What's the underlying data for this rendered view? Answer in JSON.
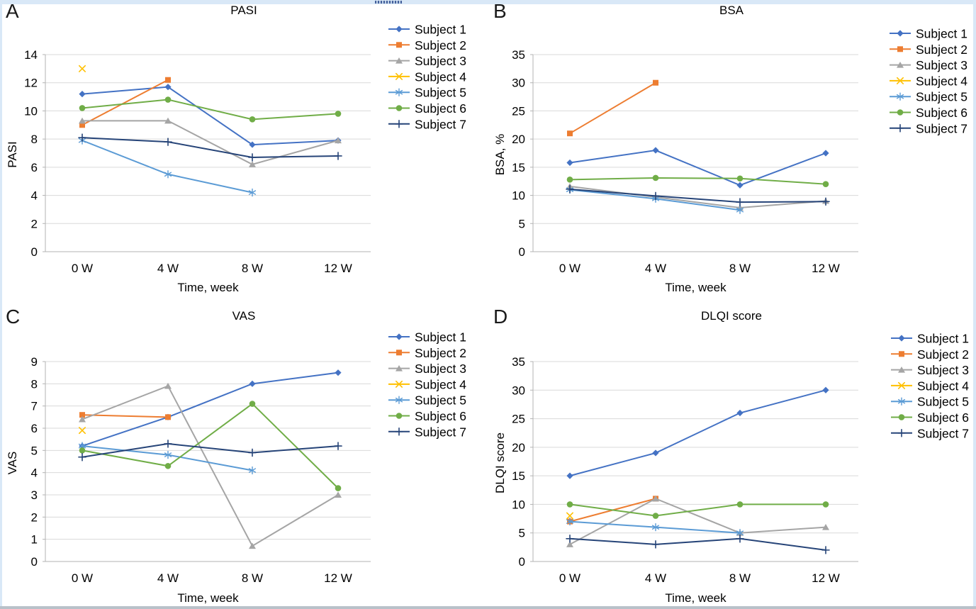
{
  "frame": {
    "edge_color": "#d9e8f7",
    "bottom_bar_color": "#b9c1c9"
  },
  "chart_data": [
    {
      "type": "line",
      "letter": "A",
      "title": "PASI",
      "xlabel": "Time, week",
      "ylabel": "PASI",
      "categories": [
        "0 W",
        "4 W",
        "8 W",
        "12 W"
      ],
      "ylim": [
        0,
        14
      ],
      "ytick_step": 2,
      "grid": true,
      "legend_position": "right",
      "series": [
        {
          "name": "Subject 1",
          "color": "#4472C4",
          "marker": "diamond",
          "values": [
            11.2,
            11.7,
            7.6,
            7.9
          ]
        },
        {
          "name": "Subject 2",
          "color": "#ED7D31",
          "marker": "square",
          "values": [
            9.0,
            12.2,
            null,
            null
          ]
        },
        {
          "name": "Subject 3",
          "color": "#A5A5A5",
          "marker": "triangle",
          "values": [
            9.3,
            9.3,
            6.2,
            7.9
          ]
        },
        {
          "name": "Subject 4",
          "color": "#FFC000",
          "marker": "x",
          "values": [
            13.0,
            null,
            null,
            null
          ]
        },
        {
          "name": "Subject 5",
          "color": "#5B9BD5",
          "marker": "asterisk",
          "values": [
            7.9,
            5.5,
            4.2,
            null
          ]
        },
        {
          "name": "Subject 6",
          "color": "#70AD47",
          "marker": "circle",
          "values": [
            10.2,
            10.8,
            9.4,
            9.8
          ]
        },
        {
          "name": "Subject 7",
          "color": "#264478",
          "marker": "plus",
          "values": [
            8.1,
            7.8,
            6.7,
            6.8
          ]
        }
      ]
    },
    {
      "type": "line",
      "letter": "B",
      "title": "BSA",
      "xlabel": "Time, week",
      "ylabel": "BSA, %",
      "categories": [
        "0 W",
        "4 W",
        "8 W",
        "12 W"
      ],
      "ylim": [
        0,
        35
      ],
      "ytick_step": 5,
      "grid": true,
      "legend_position": "right",
      "series": [
        {
          "name": "Subject 1",
          "color": "#4472C4",
          "marker": "diamond",
          "values": [
            15.8,
            18.0,
            11.8,
            17.5
          ]
        },
        {
          "name": "Subject 2",
          "color": "#ED7D31",
          "marker": "square",
          "values": [
            21.0,
            30.0,
            null,
            null
          ]
        },
        {
          "name": "Subject 3",
          "color": "#A5A5A5",
          "marker": "triangle",
          "values": [
            11.6,
            9.7,
            7.8,
            9.0
          ]
        },
        {
          "name": "Subject 4",
          "color": "#FFC000",
          "marker": "x",
          "values": [
            null,
            null,
            null,
            null
          ]
        },
        {
          "name": "Subject 5",
          "color": "#5B9BD5",
          "marker": "asterisk",
          "values": [
            11.0,
            9.4,
            7.4,
            null
          ]
        },
        {
          "name": "Subject 6",
          "color": "#70AD47",
          "marker": "circle",
          "values": [
            12.8,
            13.1,
            13.0,
            12.0
          ]
        },
        {
          "name": "Subject 7",
          "color": "#264478",
          "marker": "plus",
          "values": [
            11.1,
            9.9,
            8.8,
            8.9
          ]
        }
      ]
    },
    {
      "type": "line",
      "letter": "C",
      "title": "VAS",
      "xlabel": "Time, week",
      "ylabel": "VAS",
      "categories": [
        "0 W",
        "4 W",
        "8 W",
        "12 W"
      ],
      "ylim": [
        0,
        9
      ],
      "ytick_step": 1,
      "grid": true,
      "legend_position": "right",
      "series": [
        {
          "name": "Subject 1",
          "color": "#4472C4",
          "marker": "diamond",
          "values": [
            5.2,
            6.5,
            8.0,
            8.5
          ]
        },
        {
          "name": "Subject 2",
          "color": "#ED7D31",
          "marker": "square",
          "values": [
            6.6,
            6.5,
            null,
            null
          ]
        },
        {
          "name": "Subject 3",
          "color": "#A5A5A5",
          "marker": "triangle",
          "values": [
            6.4,
            7.9,
            0.7,
            3.0
          ]
        },
        {
          "name": "Subject 4",
          "color": "#FFC000",
          "marker": "x",
          "values": [
            5.9,
            null,
            null,
            null
          ]
        },
        {
          "name": "Subject 5",
          "color": "#5B9BD5",
          "marker": "asterisk",
          "values": [
            5.2,
            4.8,
            4.1,
            null
          ]
        },
        {
          "name": "Subject 6",
          "color": "#70AD47",
          "marker": "circle",
          "values": [
            5.0,
            4.3,
            7.1,
            3.3
          ]
        },
        {
          "name": "Subject 7",
          "color": "#264478",
          "marker": "plus",
          "values": [
            4.7,
            5.3,
            4.9,
            5.2
          ]
        }
      ]
    },
    {
      "type": "line",
      "letter": "D",
      "title": "DLQI score",
      "xlabel": "Time, week",
      "ylabel": "DLQI score",
      "categories": [
        "0 W",
        "4 W",
        "8 W",
        "12 W"
      ],
      "ylim": [
        0,
        35
      ],
      "ytick_step": 5,
      "grid": true,
      "legend_position": "right",
      "series": [
        {
          "name": "Subject 1",
          "color": "#4472C4",
          "marker": "diamond",
          "values": [
            15,
            19,
            26,
            30
          ]
        },
        {
          "name": "Subject 2",
          "color": "#ED7D31",
          "marker": "square",
          "values": [
            7,
            11,
            null,
            null
          ]
        },
        {
          "name": "Subject 3",
          "color": "#A5A5A5",
          "marker": "triangle",
          "values": [
            3,
            11,
            5,
            6
          ]
        },
        {
          "name": "Subject 4",
          "color": "#FFC000",
          "marker": "x",
          "values": [
            8,
            null,
            null,
            null
          ]
        },
        {
          "name": "Subject 5",
          "color": "#5B9BD5",
          "marker": "asterisk",
          "values": [
            7,
            6,
            5,
            null
          ]
        },
        {
          "name": "Subject 6",
          "color": "#70AD47",
          "marker": "circle",
          "values": [
            10,
            8,
            10,
            10
          ]
        },
        {
          "name": "Subject 7",
          "color": "#264478",
          "marker": "plus",
          "values": [
            4,
            3,
            4,
            2
          ]
        }
      ]
    }
  ]
}
